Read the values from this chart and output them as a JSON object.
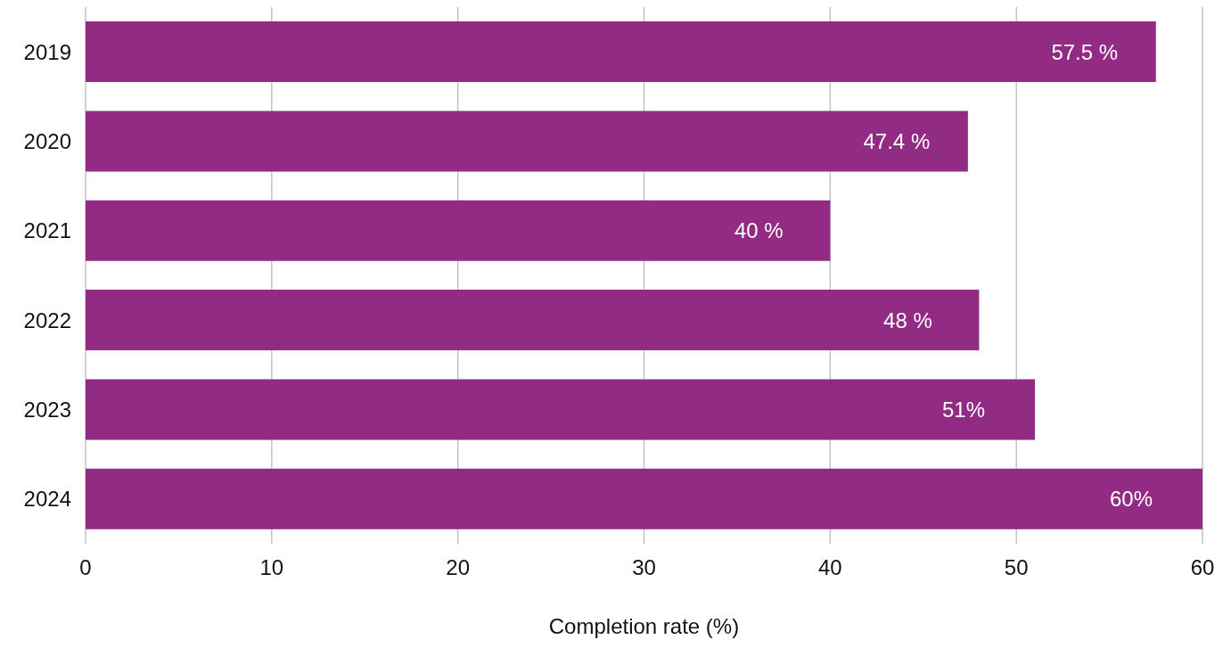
{
  "chart_data": {
    "type": "bar",
    "orientation": "horizontal",
    "xlabel": "Completion rate (%)",
    "categories": [
      "2019",
      "2020",
      "2021",
      "2022",
      "2023",
      "2024"
    ],
    "values": [
      57.5,
      47.4,
      40,
      48,
      51,
      60
    ],
    "value_labels": [
      "57.5 %",
      "47.4 %",
      "40 %",
      "48 %",
      "51%",
      "60%"
    ],
    "color": "#922b84",
    "xlim": [
      0,
      60
    ],
    "xticks": [
      0,
      10,
      20,
      30,
      40,
      50,
      60
    ],
    "grid": "x"
  }
}
